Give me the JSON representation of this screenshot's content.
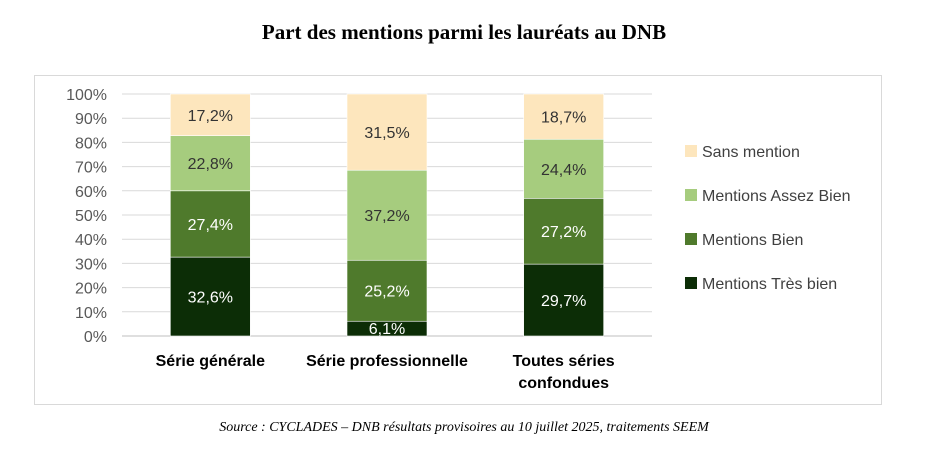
{
  "title": "Part des mentions parmi les lauréats au DNB",
  "source": "Source : CYCLADES – DNB résultats provisoires au 10 juillet 2025, traitements SEEM",
  "chart_data": {
    "type": "bar",
    "stacked": true,
    "categories": [
      [
        "Série générale"
      ],
      [
        "Série professionnelle"
      ],
      [
        "Toutes séries",
        "confondues"
      ]
    ],
    "y_ticks": [
      "0%",
      "10%",
      "20%",
      "30%",
      "40%",
      "50%",
      "60%",
      "70%",
      "80%",
      "90%",
      "100%"
    ],
    "ylim": [
      0,
      100
    ],
    "grid": true,
    "legend_position": "right",
    "series": [
      {
        "name": "Mentions Très bien",
        "color": "#0c2d06",
        "values": [
          32.6,
          6.1,
          29.7
        ],
        "labels": [
          "32,6%",
          "6,1%",
          "29,7%"
        ],
        "label_color": "#ffffff"
      },
      {
        "name": "Mentions Bien",
        "color": "#4f7a2c",
        "values": [
          27.4,
          25.2,
          27.2
        ],
        "labels": [
          "27,4%",
          "25,2%",
          "27,2%"
        ],
        "label_color": "#ffffff"
      },
      {
        "name": "Mentions Assez Bien",
        "color": "#a6cc7e",
        "values": [
          22.8,
          37.2,
          24.4
        ],
        "labels": [
          "22,8%",
          "37,2%",
          "24,4%"
        ],
        "label_color": "#333333"
      },
      {
        "name": "Sans mention",
        "color": "#fde6bd",
        "values": [
          17.2,
          31.5,
          18.7
        ],
        "labels": [
          "17,2%",
          "31,5%",
          "18,7%"
        ],
        "label_color": "#333333"
      }
    ],
    "legend_order": [
      "Sans mention",
      "Mentions Assez Bien",
      "Mentions Bien",
      "Mentions Très bien"
    ]
  }
}
